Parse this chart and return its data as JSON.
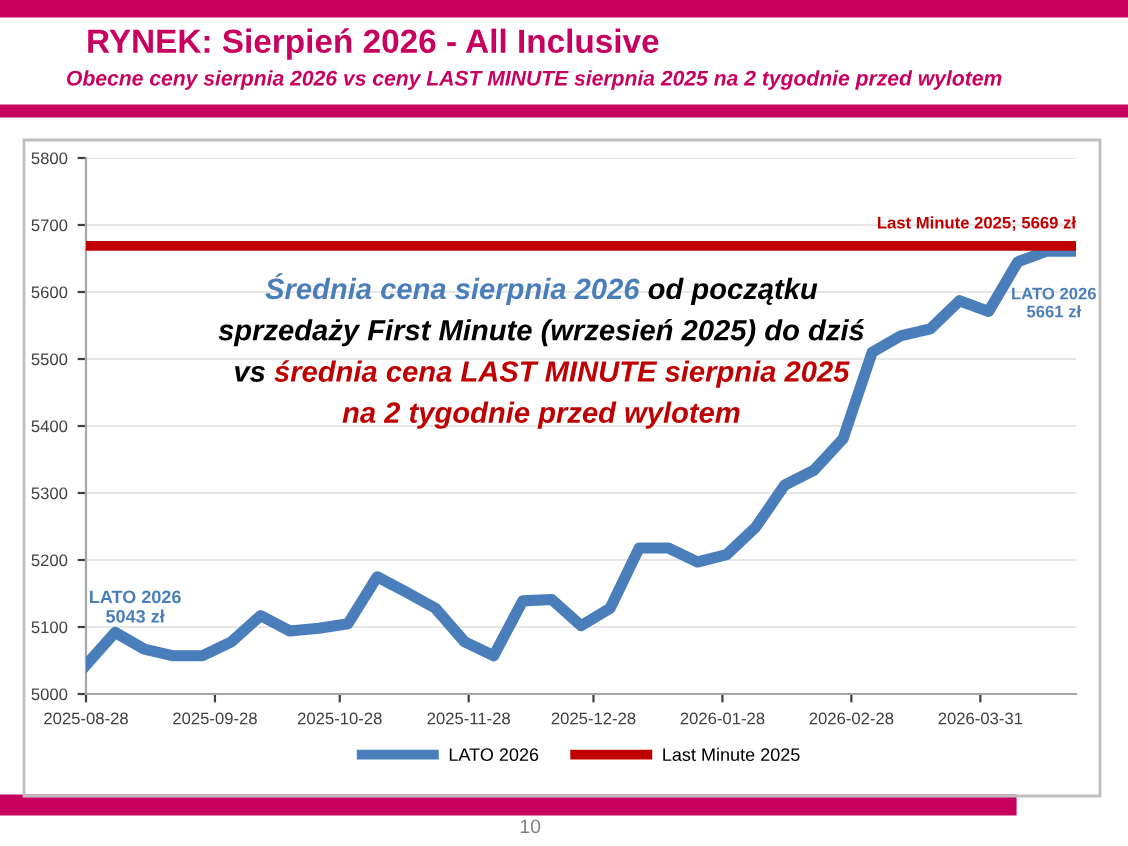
{
  "chart_data": {
    "type": "line",
    "title": "RYNEK: Sierpień 2026 - All Inclusive",
    "subtitle": "Obecne ceny sierpnia 2026 vs ceny LAST MINUTE sierpnia 2025 na 2 tygodnie przed wylotem",
    "series": [
      {
        "name": "LATO 2026",
        "color": "#4a7ebb",
        "x": [
          "2025-08-28",
          "2025-09-04",
          "2025-09-11",
          "2025-09-18",
          "2025-09-25",
          "2025-10-02",
          "2025-10-09",
          "2025-10-16",
          "2025-10-23",
          "2025-10-30",
          "2025-11-06",
          "2025-11-13",
          "2025-11-20",
          "2025-11-27",
          "2025-12-04",
          "2025-12-11",
          "2025-12-18",
          "2025-12-25",
          "2026-01-01",
          "2026-01-08",
          "2026-01-15",
          "2026-01-22",
          "2026-01-29",
          "2026-02-05",
          "2026-02-12",
          "2026-02-19",
          "2026-02-26",
          "2026-03-05",
          "2026-03-12",
          "2026-03-19",
          "2026-03-26",
          "2026-04-02",
          "2026-04-09",
          "2026-04-16",
          "2026-04-23"
        ],
        "values": [
          5043,
          5092,
          5067,
          5057,
          5057,
          5078,
          5117,
          5094,
          5098,
          5105,
          5175,
          5152,
          5128,
          5078,
          5057,
          5139,
          5141,
          5102,
          5128,
          5218,
          5218,
          5197,
          5208,
          5249,
          5312,
          5334,
          5381,
          5510,
          5535,
          5545,
          5587,
          5571,
          5645,
          5661,
          5661
        ]
      },
      {
        "name": "Last Minute 2025",
        "color": "#c00000",
        "x": [
          "2025-08-28",
          "2026-04-23"
        ],
        "values": [
          5669,
          5669
        ]
      }
    ],
    "xlim": [
      "2025-08-28",
      "2026-04-23"
    ],
    "xticks": [
      "2025-08-28",
      "2025-09-28",
      "2025-10-28",
      "2025-11-28",
      "2025-12-28",
      "2026-01-28",
      "2026-02-28",
      "2026-03-31"
    ],
    "ylim": [
      5000,
      5800
    ],
    "yticks": [
      5000,
      5100,
      5200,
      5300,
      5400,
      5500,
      5600,
      5700,
      5800
    ],
    "grid": "y",
    "legend": "bottom",
    "marker": "none",
    "line_style": "solid",
    "annotations": [
      {
        "text": "LATO 2026\n5043 zł",
        "x": "2025-08-28",
        "y": 5043
      },
      {
        "text": "LATO 2026\n5661 zł",
        "x": "2026-04-23",
        "y": 5661
      },
      {
        "text": "Last Minute 2025; 5669 zł",
        "x": "2026-04-23",
        "y": 5669
      },
      "Średnia cena sierpnia 2026",
      " od początku",
      "sprzedaży First Minute (wrzesień 2025) do dziś",
      "vs ",
      "średnia cena LAST MINUTE sierpnia 2025",
      "na 2 tygodnie przed wylotem",
      "10"
    ]
  }
}
